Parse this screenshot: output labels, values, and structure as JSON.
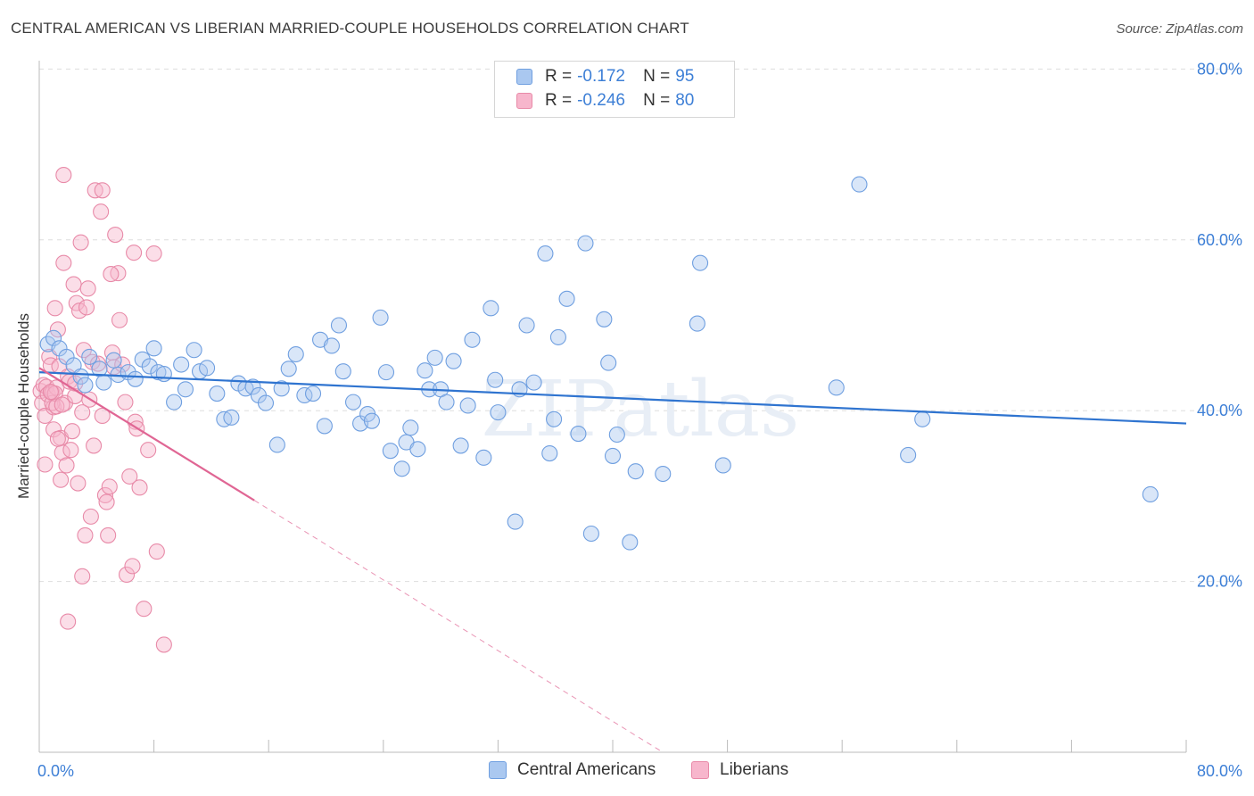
{
  "title": "CENTRAL AMERICAN VS LIBERIAN MARRIED-COUPLE HOUSEHOLDS CORRELATION CHART",
  "source": "Source: ZipAtlas.com",
  "watermark": "ZIPatlas",
  "legend": {
    "r_label": "R =",
    "n_label": "N =",
    "rows": [
      {
        "r": "-0.172",
        "n": "95"
      },
      {
        "r": "-0.246",
        "n": "80"
      }
    ]
  },
  "colors": {
    "blue_fill": "#aac8f0",
    "blue_stroke": "#6f9fe0",
    "blue_line": "#2f74d0",
    "pink_fill": "#f7b6cc",
    "pink_stroke": "#e88aa8",
    "pink_line": "#e06694",
    "axis_text": "#3d7fd6",
    "grid": "#dddddd"
  },
  "chart_data": {
    "type": "scatter",
    "ylabel": "Married-couple Households",
    "xlabel": "",
    "xlim": [
      0,
      80
    ],
    "ylim": [
      0,
      80
    ],
    "x_tick_labels": [
      "0.0%",
      "80.0%"
    ],
    "y_ticks": [
      {
        "value": 80,
        "label": "80.0%"
      },
      {
        "value": 60,
        "label": "60.0%"
      },
      {
        "value": 40,
        "label": "40.0%"
      },
      {
        "value": 20,
        "label": "20.0%"
      }
    ],
    "series": [
      {
        "name": "Central Americans",
        "color": "blue",
        "r": -0.172,
        "n": 95,
        "trend": {
          "x0": 0,
          "y0": 44.5,
          "x1": 80,
          "y1": 38.5
        },
        "points": [
          [
            0.6,
            47.8
          ],
          [
            1.0,
            48.5
          ],
          [
            1.4,
            47.3
          ],
          [
            1.9,
            46.3
          ],
          [
            2.4,
            45.3
          ],
          [
            2.9,
            44.0
          ],
          [
            3.2,
            43.0
          ],
          [
            3.5,
            46.3
          ],
          [
            4.2,
            44.9
          ],
          [
            4.5,
            43.3
          ],
          [
            5.2,
            45.9
          ],
          [
            5.5,
            44.2
          ],
          [
            6.2,
            44.5
          ],
          [
            6.7,
            43.7
          ],
          [
            7.2,
            46.0
          ],
          [
            7.7,
            45.2
          ],
          [
            8.0,
            47.3
          ],
          [
            8.3,
            44.5
          ],
          [
            8.7,
            44.3
          ],
          [
            9.4,
            41.0
          ],
          [
            9.9,
            45.4
          ],
          [
            10.2,
            42.5
          ],
          [
            10.8,
            47.1
          ],
          [
            11.2,
            44.6
          ],
          [
            11.7,
            45.0
          ],
          [
            12.4,
            42.0
          ],
          [
            12.9,
            39.0
          ],
          [
            13.4,
            39.2
          ],
          [
            13.9,
            43.2
          ],
          [
            14.4,
            42.6
          ],
          [
            14.9,
            42.8
          ],
          [
            15.3,
            41.8
          ],
          [
            15.8,
            40.9
          ],
          [
            16.6,
            36.0
          ],
          [
            16.9,
            42.6
          ],
          [
            17.4,
            44.9
          ],
          [
            17.9,
            46.6
          ],
          [
            18.5,
            41.8
          ],
          [
            19.1,
            42.0
          ],
          [
            19.6,
            48.3
          ],
          [
            19.9,
            38.2
          ],
          [
            20.4,
            47.6
          ],
          [
            20.9,
            50.0
          ],
          [
            21.2,
            44.6
          ],
          [
            21.9,
            41.0
          ],
          [
            22.4,
            38.5
          ],
          [
            22.9,
            39.6
          ],
          [
            23.2,
            38.8
          ],
          [
            23.8,
            50.9
          ],
          [
            24.2,
            44.5
          ],
          [
            24.5,
            35.3
          ],
          [
            25.3,
            33.2
          ],
          [
            25.6,
            36.3
          ],
          [
            25.9,
            38.0
          ],
          [
            26.4,
            35.5
          ],
          [
            26.9,
            44.7
          ],
          [
            27.2,
            42.5
          ],
          [
            27.6,
            46.2
          ],
          [
            28.0,
            42.5
          ],
          [
            28.4,
            41.0
          ],
          [
            28.9,
            45.8
          ],
          [
            29.4,
            35.9
          ],
          [
            29.9,
            40.6
          ],
          [
            30.2,
            48.3
          ],
          [
            31.0,
            34.5
          ],
          [
            31.5,
            52.0
          ],
          [
            31.8,
            43.6
          ],
          [
            32.0,
            39.8
          ],
          [
            33.2,
            27.0
          ],
          [
            33.5,
            42.5
          ],
          [
            34.0,
            50.0
          ],
          [
            34.5,
            43.3
          ],
          [
            35.3,
            58.4
          ],
          [
            35.6,
            35.0
          ],
          [
            35.9,
            39.0
          ],
          [
            36.2,
            48.6
          ],
          [
            36.8,
            53.1
          ],
          [
            37.6,
            37.3
          ],
          [
            38.1,
            59.6
          ],
          [
            38.5,
            25.6
          ],
          [
            39.4,
            50.7
          ],
          [
            39.7,
            45.6
          ],
          [
            40.0,
            34.7
          ],
          [
            40.3,
            37.2
          ],
          [
            41.2,
            24.6
          ],
          [
            41.6,
            32.9
          ],
          [
            43.5,
            32.6
          ],
          [
            45.9,
            50.2
          ],
          [
            46.1,
            57.3
          ],
          [
            47.7,
            33.6
          ],
          [
            55.6,
            42.7
          ],
          [
            57.2,
            66.5
          ],
          [
            60.6,
            34.8
          ],
          [
            61.6,
            39.0
          ],
          [
            77.5,
            30.2
          ]
        ]
      },
      {
        "name": "Liberians",
        "color": "pink",
        "r": -0.246,
        "n": 80,
        "trend": {
          "x0": 0,
          "y0": 45.0,
          "x1": 15.0,
          "y1": 29.5,
          "dash_x1": 43.5,
          "dash_y1": 0
        },
        "points": [
          [
            0.1,
            42.3
          ],
          [
            0.2,
            40.9
          ],
          [
            0.3,
            43.0
          ],
          [
            0.4,
            39.4
          ],
          [
            0.4,
            33.7
          ],
          [
            0.5,
            42.8
          ],
          [
            0.6,
            41.9
          ],
          [
            0.7,
            46.3
          ],
          [
            0.8,
            45.3
          ],
          [
            0.9,
            42.1
          ],
          [
            1.0,
            37.8
          ],
          [
            1.0,
            40.4
          ],
          [
            1.1,
            52.0
          ],
          [
            1.2,
            42.7
          ],
          [
            1.3,
            49.5
          ],
          [
            1.4,
            45.2
          ],
          [
            1.5,
            36.8
          ],
          [
            1.5,
            31.9
          ],
          [
            1.6,
            35.1
          ],
          [
            1.7,
            57.3
          ],
          [
            1.7,
            67.6
          ],
          [
            1.8,
            40.9
          ],
          [
            1.9,
            33.6
          ],
          [
            2.0,
            44.0
          ],
          [
            2.1,
            43.4
          ],
          [
            2.2,
            35.4
          ],
          [
            2.3,
            37.6
          ],
          [
            2.4,
            54.8
          ],
          [
            2.5,
            41.7
          ],
          [
            2.6,
            52.6
          ],
          [
            2.7,
            31.5
          ],
          [
            2.8,
            51.7
          ],
          [
            2.9,
            59.7
          ],
          [
            3.0,
            20.6
          ],
          [
            3.1,
            47.1
          ],
          [
            3.2,
            25.4
          ],
          [
            3.3,
            52.1
          ],
          [
            3.4,
            54.3
          ],
          [
            3.5,
            41.3
          ],
          [
            3.6,
            27.6
          ],
          [
            3.7,
            45.7
          ],
          [
            3.8,
            35.9
          ],
          [
            3.9,
            65.8
          ],
          [
            4.1,
            45.5
          ],
          [
            4.3,
            63.3
          ],
          [
            4.4,
            39.4
          ],
          [
            4.4,
            65.8
          ],
          [
            4.6,
            30.1
          ],
          [
            4.7,
            29.3
          ],
          [
            4.8,
            25.4
          ],
          [
            4.9,
            31.1
          ],
          [
            5.1,
            46.8
          ],
          [
            5.2,
            45.1
          ],
          [
            5.3,
            60.6
          ],
          [
            5.5,
            56.1
          ],
          [
            5.6,
            50.6
          ],
          [
            5.8,
            45.4
          ],
          [
            6.0,
            41.0
          ],
          [
            6.1,
            20.8
          ],
          [
            6.3,
            32.3
          ],
          [
            6.5,
            21.8
          ],
          [
            6.6,
            58.5
          ],
          [
            6.7,
            38.7
          ],
          [
            6.8,
            37.9
          ],
          [
            7.0,
            31.0
          ],
          [
            7.3,
            16.8
          ],
          [
            7.6,
            35.4
          ],
          [
            8.0,
            58.4
          ],
          [
            8.2,
            23.5
          ],
          [
            8.7,
            12.6
          ],
          [
            2.0,
            15.3
          ],
          [
            1.3,
            36.7
          ],
          [
            0.9,
            40.9
          ],
          [
            1.1,
            42.0
          ],
          [
            1.2,
            40.5
          ],
          [
            5.0,
            56.0
          ],
          [
            1.6,
            40.7
          ],
          [
            2.5,
            43.2
          ],
          [
            0.8,
            42.2
          ],
          [
            3.0,
            39.8
          ]
        ]
      }
    ]
  }
}
